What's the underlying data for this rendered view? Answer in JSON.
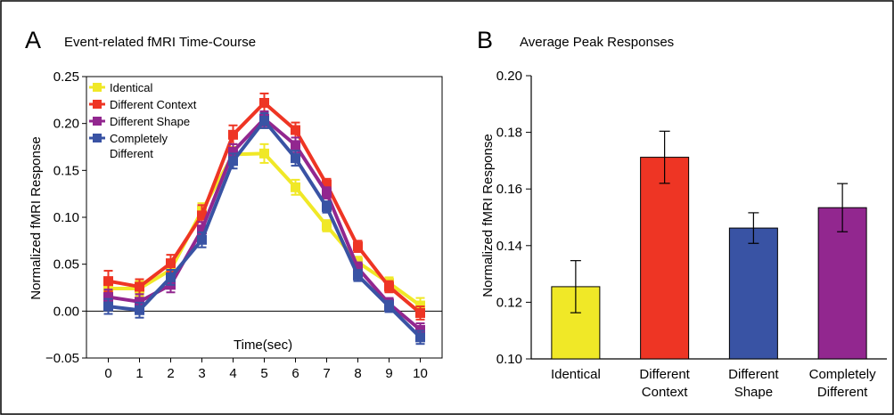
{
  "chart_data": [
    {
      "panel_letter": "A",
      "type": "line",
      "title": "Event-related fMRI Time-Course",
      "xlabel": "Time(sec)",
      "ylabel": "Normalized fMRI Response",
      "x": [
        0,
        1,
        2,
        3,
        4,
        5,
        6,
        7,
        8,
        9,
        10
      ],
      "x_tick_labels": [
        "0",
        "1",
        "2",
        "3",
        "4",
        "5",
        "6",
        "7",
        "8",
        "9",
        "10"
      ],
      "xlim": [
        -0.7,
        10.7
      ],
      "ylim": [
        -0.05,
        0.25
      ],
      "y_ticks": [
        -0.05,
        0,
        0.05,
        0.1,
        0.15,
        0.2,
        0.25
      ],
      "y_tick_labels": [
        "−0.05",
        "0.00",
        "0.05",
        "0.10",
        "0.15",
        "0.20",
        "0.25"
      ],
      "zero_line": true,
      "grid": false,
      "legend_position": "top-left",
      "series": [
        {
          "name": "Identical",
          "color": "#f0e827",
          "values": [
            0.024,
            0.024,
            0.044,
            0.107,
            0.167,
            0.168,
            0.132,
            0.091,
            0.052,
            0.03,
            0.006
          ],
          "errors": [
            0.008,
            0.008,
            0.008,
            0.008,
            0.008,
            0.01,
            0.008,
            0.006,
            0.006,
            0.006,
            0.008
          ]
        },
        {
          "name": "Different Context",
          "color": "#ee3524",
          "values": [
            0.032,
            0.026,
            0.051,
            0.102,
            0.188,
            0.222,
            0.193,
            0.135,
            0.069,
            0.026,
            -0.002
          ],
          "errors": [
            0.011,
            0.008,
            0.009,
            0.011,
            0.01,
            0.01,
            0.008,
            0.006,
            0.006,
            0.006,
            0.007
          ]
        },
        {
          "name": "Different Shape",
          "color": "#92278f",
          "values": [
            0.015,
            0.01,
            0.028,
            0.087,
            0.17,
            0.205,
            0.177,
            0.126,
            0.046,
            0.008,
            -0.02
          ],
          "errors": [
            0.008,
            0.008,
            0.008,
            0.008,
            0.008,
            0.008,
            0.008,
            0.006,
            0.006,
            0.006,
            0.007
          ]
        },
        {
          "name": "Completely Different",
          "color": "#3953a4",
          "values": [
            0.005,
            0.001,
            0.036,
            0.076,
            0.16,
            0.203,
            0.163,
            0.111,
            0.038,
            0.005,
            -0.028
          ],
          "errors": [
            0.008,
            0.008,
            0.008,
            0.008,
            0.008,
            0.008,
            0.008,
            0.006,
            0.006,
            0.006,
            0.007
          ]
        }
      ],
      "legend_labels": [
        [
          "Identical"
        ],
        [
          "Different Context"
        ],
        [
          "Different Shape"
        ],
        [
          "Completely",
          "Different"
        ]
      ]
    },
    {
      "panel_letter": "B",
      "type": "bar",
      "title": "Average Peak Responses",
      "xlabel": "",
      "ylabel": "Normalized fMRI Response",
      "ylim": [
        0.1,
        0.2
      ],
      "y_ticks": [
        0.1,
        0.12,
        0.14,
        0.16,
        0.18,
        0.2
      ],
      "y_tick_labels": [
        "0.10",
        "0.12",
        "0.14",
        "0.16",
        "0.18",
        "0.20"
      ],
      "grid": false,
      "categories": [
        "Identical",
        "Different Context",
        "Different Shape",
        "Completely Different"
      ],
      "category_labels": [
        [
          "Identical"
        ],
        [
          "Different",
          "Context"
        ],
        [
          "Different",
          "Shape"
        ],
        [
          "Completely",
          "Different"
        ]
      ],
      "values": [
        0.1255,
        0.1712,
        0.1462,
        0.1534
      ],
      "errors": [
        0.0092,
        0.0092,
        0.0054,
        0.0085
      ],
      "colors": [
        "#f0e827",
        "#ee3524",
        "#3953a4",
        "#92278f"
      ]
    }
  ]
}
